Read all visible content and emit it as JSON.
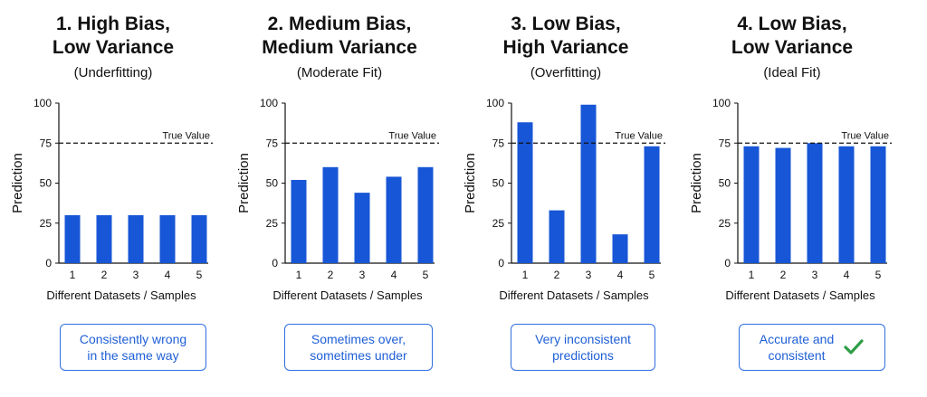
{
  "colors": {
    "bar": "#1756D6",
    "accent_text": "#1E5FD6",
    "border": "#2F6FE0",
    "check": "#2E9E46"
  },
  "panels": [
    {
      "title_lines": [
        "1. High Bias,",
        "Low Variance"
      ],
      "subtitle": "(Underfitting)",
      "note_lines": [
        "Consistently wrong",
        "in the same way"
      ],
      "check_icon": false
    },
    {
      "title_lines": [
        "2. Medium Bias,",
        "Medium Variance"
      ],
      "subtitle": "(Moderate Fit)",
      "note_lines": [
        "Sometimes over,",
        "sometimes under"
      ],
      "check_icon": false
    },
    {
      "title_lines": [
        "3. Low Bias,",
        "High Variance"
      ],
      "subtitle": "(Overfitting)",
      "note_lines": [
        "Very inconsistent",
        "predictions"
      ],
      "check_icon": false
    },
    {
      "title_lines": [
        "4. Low Bias,",
        "Low Variance"
      ],
      "subtitle": "(Ideal Fit)",
      "note_lines": [
        "Accurate and",
        "consistent"
      ],
      "check_icon": true,
      "check_icon_name": "checkmark-icon"
    }
  ],
  "chart_data": [
    {
      "type": "bar",
      "categories": [
        "1",
        "2",
        "3",
        "4",
        "5"
      ],
      "values": [
        30,
        30,
        30,
        30,
        30
      ],
      "ylabel": "Prediction",
      "xlabel": "Different Datasets / Samples",
      "ylim": [
        0,
        100
      ],
      "yticks": [
        0,
        25,
        50,
        75,
        100
      ],
      "reference_line": {
        "value": 75,
        "label": "True Value",
        "style": "dashed"
      },
      "grid": false
    },
    {
      "type": "bar",
      "categories": [
        "1",
        "2",
        "3",
        "4",
        "5"
      ],
      "values": [
        52,
        60,
        44,
        54,
        60
      ],
      "ylabel": "Prediction",
      "xlabel": "Different Datasets / Samples",
      "ylim": [
        0,
        100
      ],
      "yticks": [
        0,
        25,
        50,
        75,
        100
      ],
      "reference_line": {
        "value": 75,
        "label": "True Value",
        "style": "dashed"
      },
      "grid": false
    },
    {
      "type": "bar",
      "categories": [
        "1",
        "2",
        "3",
        "4",
        "5"
      ],
      "values": [
        88,
        33,
        99,
        18,
        73
      ],
      "ylabel": "Prediction",
      "xlabel": "Different Datasets / Samples",
      "ylim": [
        0,
        100
      ],
      "yticks": [
        0,
        25,
        50,
        75,
        100
      ],
      "reference_line": {
        "value": 75,
        "label": "True Value",
        "style": "dashed"
      },
      "grid": false
    },
    {
      "type": "bar",
      "categories": [
        "1",
        "2",
        "3",
        "4",
        "5"
      ],
      "values": [
        73,
        72,
        75,
        73,
        73
      ],
      "ylabel": "Prediction",
      "xlabel": "Different Datasets / Samples",
      "ylim": [
        0,
        100
      ],
      "yticks": [
        0,
        25,
        50,
        75,
        100
      ],
      "reference_line": {
        "value": 75,
        "label": "True Value",
        "style": "dashed"
      },
      "grid": false
    }
  ]
}
